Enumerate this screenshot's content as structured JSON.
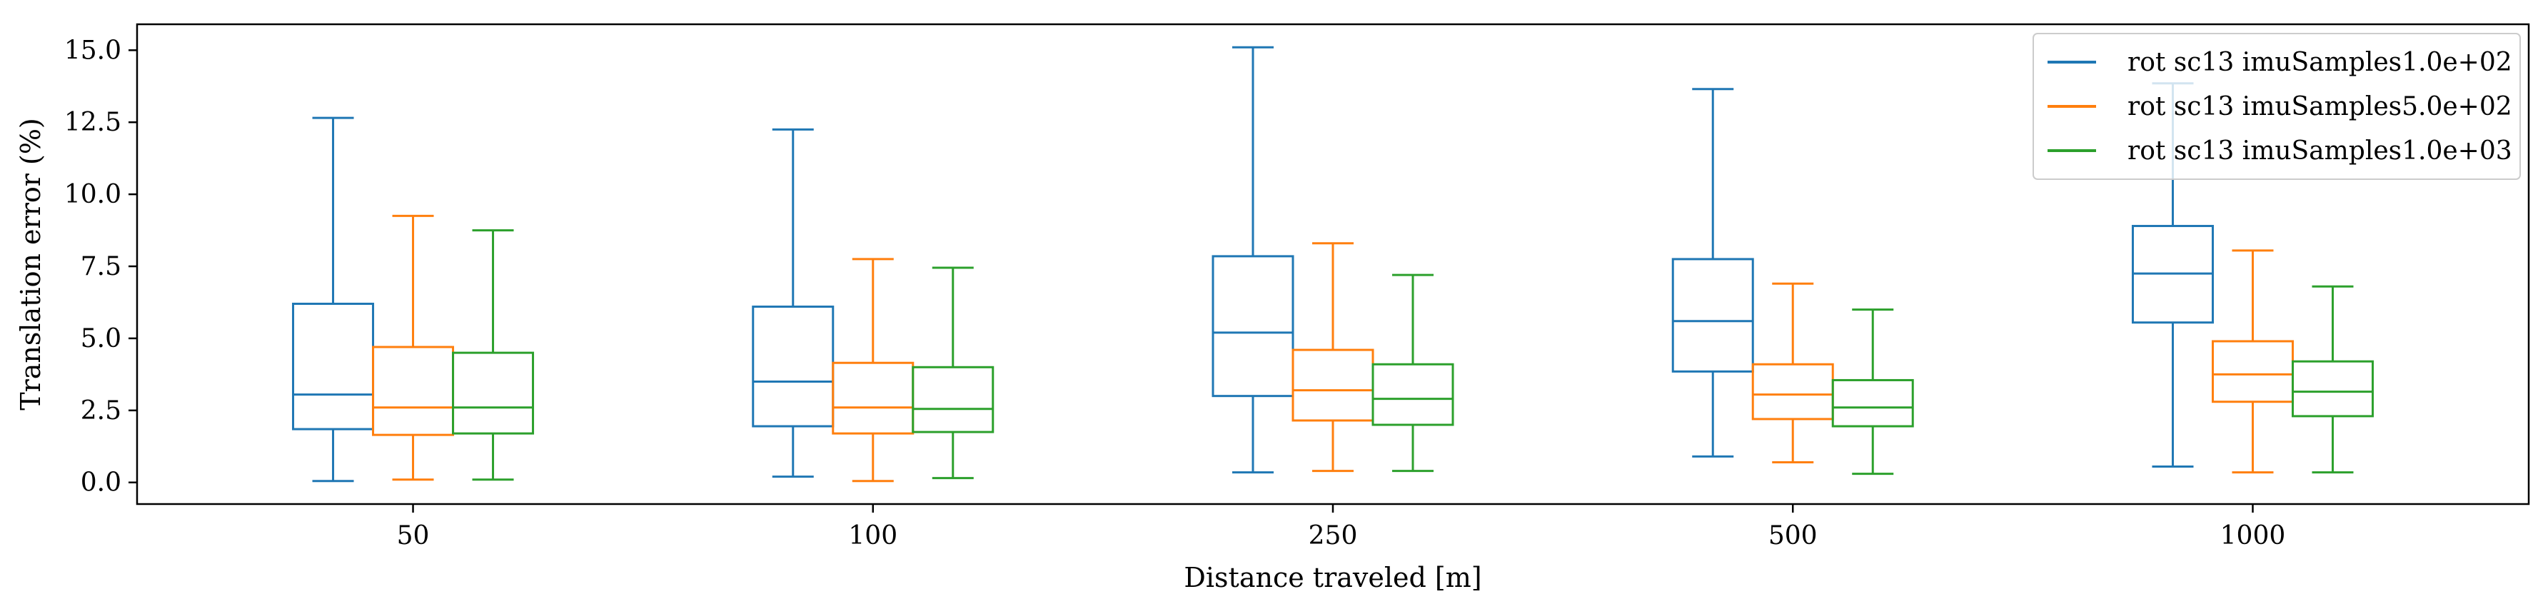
{
  "chart_data": {
    "type": "box",
    "xlabel": "Distance traveled [m]",
    "ylabel": "Translation error (%)",
    "categories": [
      "50",
      "100",
      "250",
      "500",
      "1000"
    ],
    "ylim": [
      -0.75,
      15.9
    ],
    "yticks": [
      0.0,
      2.5,
      5.0,
      7.5,
      10.0,
      12.5,
      15.0
    ],
    "ytick_labels": [
      "0.0",
      "2.5",
      "5.0",
      "7.5",
      "10.0",
      "12.5",
      "15.0"
    ],
    "grid": false,
    "legend_position": "top-right",
    "series": [
      {
        "name": "rot sc13 imuSamples1.0e+02",
        "color": "#1f77b4",
        "boxes": [
          {
            "whislo": 0.05,
            "q1": 1.85,
            "med": 3.05,
            "q3": 6.2,
            "whishi": 12.65
          },
          {
            "whislo": 0.2,
            "q1": 1.95,
            "med": 3.5,
            "q3": 6.1,
            "whishi": 12.25
          },
          {
            "whislo": 0.35,
            "q1": 3.0,
            "med": 5.2,
            "q3": 7.85,
            "whishi": 15.1
          },
          {
            "whislo": 0.9,
            "q1": 3.85,
            "med": 5.6,
            "q3": 7.75,
            "whishi": 13.65
          },
          {
            "whislo": 0.55,
            "q1": 5.55,
            "med": 7.25,
            "q3": 8.9,
            "whishi": 13.85
          }
        ]
      },
      {
        "name": "rot sc13 imuSamples5.0e+02",
        "color": "#ff7f0e",
        "boxes": [
          {
            "whislo": 0.1,
            "q1": 1.65,
            "med": 2.6,
            "q3": 4.7,
            "whishi": 9.25
          },
          {
            "whislo": 0.05,
            "q1": 1.7,
            "med": 2.6,
            "q3": 4.15,
            "whishi": 7.75
          },
          {
            "whislo": 0.4,
            "q1": 2.15,
            "med": 3.2,
            "q3": 4.6,
            "whishi": 8.3
          },
          {
            "whislo": 0.7,
            "q1": 2.2,
            "med": 3.05,
            "q3": 4.1,
            "whishi": 6.9
          },
          {
            "whislo": 0.35,
            "q1": 2.8,
            "med": 3.75,
            "q3": 4.9,
            "whishi": 8.05
          }
        ]
      },
      {
        "name": "rot sc13 imuSamples1.0e+03",
        "color": "#2ca02c",
        "boxes": [
          {
            "whislo": 0.1,
            "q1": 1.7,
            "med": 2.6,
            "q3": 4.5,
            "whishi": 8.75
          },
          {
            "whislo": 0.15,
            "q1": 1.75,
            "med": 2.55,
            "q3": 4.0,
            "whishi": 7.45
          },
          {
            "whislo": 0.4,
            "q1": 2.0,
            "med": 2.9,
            "q3": 4.1,
            "whishi": 7.2
          },
          {
            "whislo": 0.3,
            "q1": 1.95,
            "med": 2.6,
            "q3": 3.55,
            "whishi": 6.0
          },
          {
            "whislo": 0.35,
            "q1": 2.3,
            "med": 3.15,
            "q3": 4.2,
            "whishi": 6.8
          }
        ]
      }
    ]
  }
}
